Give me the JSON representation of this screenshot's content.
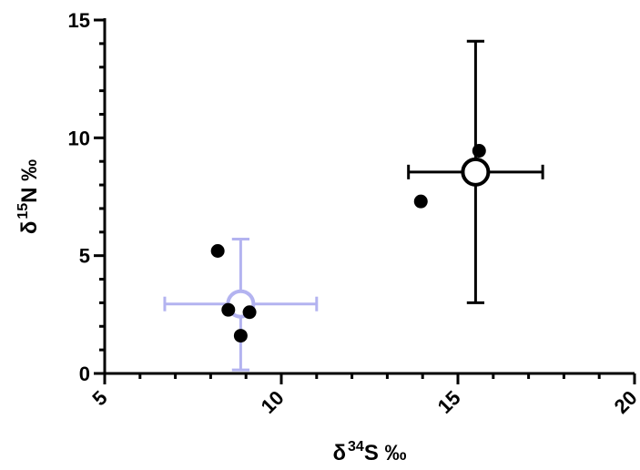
{
  "chart_data": {
    "type": "scatter",
    "title": "",
    "xlabel": {
      "prefix": "δ",
      "sup": "34",
      "main": "S ‰"
    },
    "ylabel": {
      "prefix": "δ",
      "sup": "15",
      "main": "N ‰"
    },
    "xlim": [
      5,
      20
    ],
    "ylim": [
      0,
      15
    ],
    "xticks": [
      "5",
      "10",
      "15",
      "20"
    ],
    "yticks": [
      "0",
      "5",
      "10",
      "15"
    ],
    "grid": false,
    "series": [
      {
        "points": [
          {
            "x": 8.2,
            "y": 5.2
          },
          {
            "x": 8.5,
            "y": 2.7
          },
          {
            "x": 9.1,
            "y": 2.6
          },
          {
            "x": 8.85,
            "y": 1.6
          }
        ],
        "mean": {
          "x": 8.85,
          "y": 2.95,
          "x_err": [
            6.7,
            11.0
          ],
          "y_err": [
            0.15,
            5.7
          ]
        },
        "mean_color": "#b3b3f0"
      },
      {
        "points": [
          {
            "x": 13.95,
            "y": 7.3
          },
          {
            "x": 15.6,
            "y": 9.45
          }
        ],
        "mean": {
          "x": 15.5,
          "y": 8.55,
          "x_err": [
            13.6,
            17.4
          ],
          "y_err": [
            3.0,
            14.1
          ]
        },
        "mean_color": "#000000"
      }
    ],
    "point_color": "#000000"
  }
}
